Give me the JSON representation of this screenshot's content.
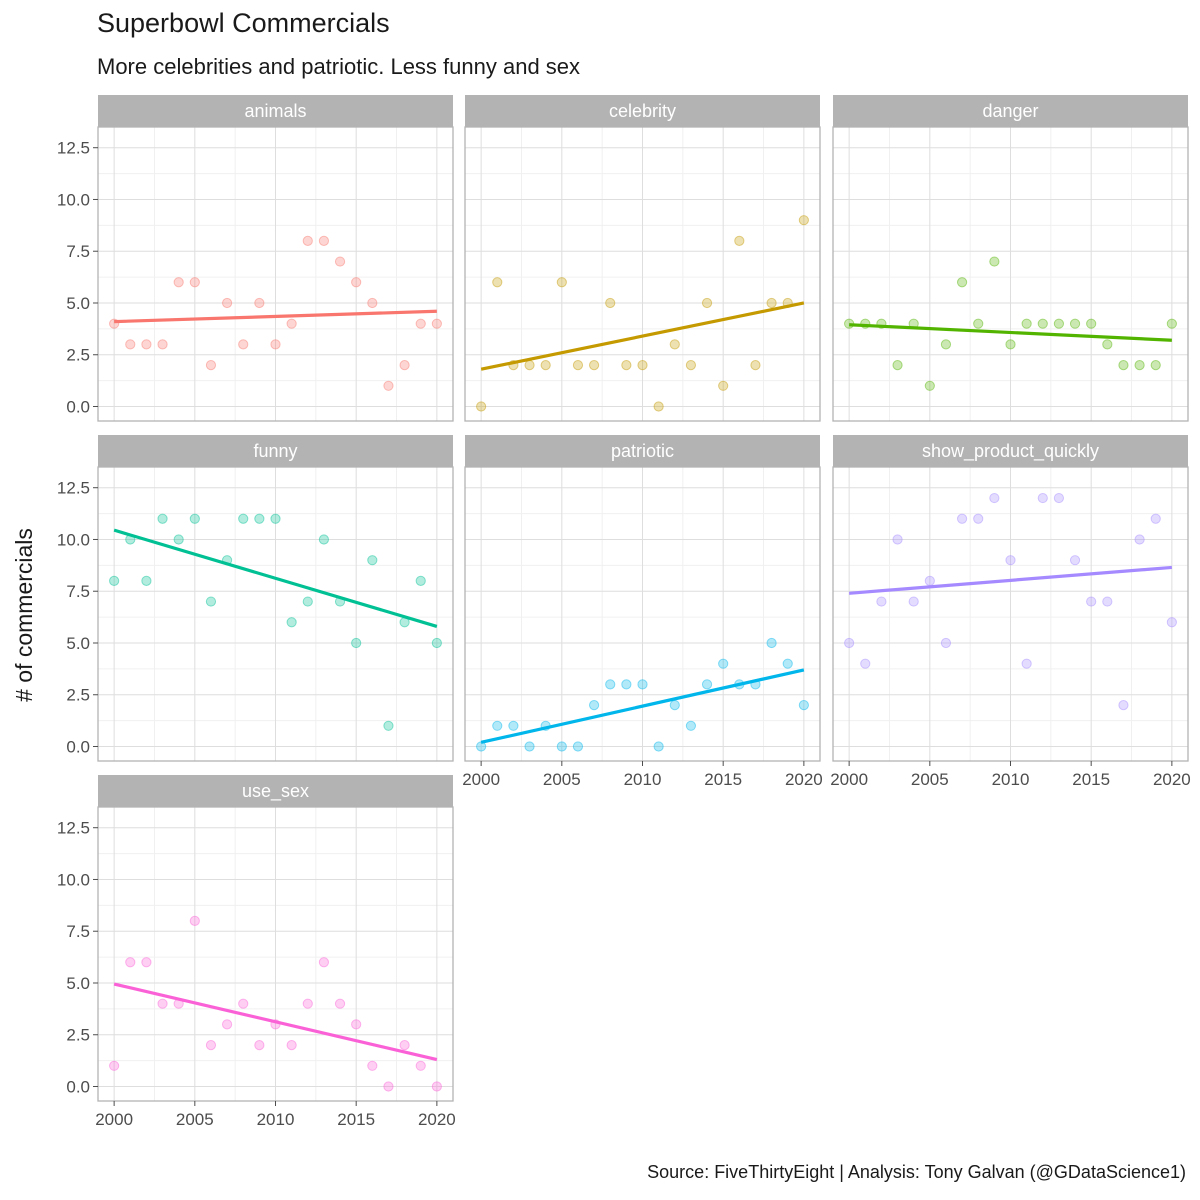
{
  "header": {
    "title": "Superbowl Commercials",
    "subtitle": "More celebrities and patriotic. Less funny and sex"
  },
  "caption": "Source: FiveThirtyEight  |  Analysis: Tony Galvan (@GDataScience1)",
  "chart_data": {
    "type": "scatter",
    "ylabel": "# of commercials",
    "xlim": [
      1999,
      2021
    ],
    "ylim": [
      -0.7,
      13.5
    ],
    "x_ticks": [
      2000,
      2005,
      2010,
      2015,
      2020
    ],
    "x_tick_labels": [
      "2000",
      "2005",
      "2010",
      "2015",
      "2020"
    ],
    "y_ticks": [
      0,
      2.5,
      5,
      7.5,
      10,
      12.5
    ],
    "y_tick_labels": [
      "0.0",
      "2.5",
      "5.0",
      "7.5",
      "10.0",
      "12.5"
    ],
    "x": [
      2000,
      2001,
      2002,
      2003,
      2004,
      2005,
      2006,
      2007,
      2008,
      2009,
      2010,
      2011,
      2012,
      2013,
      2014,
      2015,
      2016,
      2017,
      2018,
      2019,
      2020
    ],
    "series": [
      {
        "name": "animals",
        "color": "#F8766D",
        "values": [
          4,
          3,
          3,
          3,
          6,
          6,
          2,
          5,
          3,
          5,
          3,
          4,
          8,
          8,
          7,
          6,
          5,
          1,
          2,
          4,
          4
        ],
        "trend": [
          4.1,
          4.6
        ]
      },
      {
        "name": "celebrity",
        "color": "#C49A00",
        "values": [
          0,
          6,
          2,
          2,
          2,
          6,
          2,
          2,
          5,
          2,
          2,
          0,
          3,
          2,
          5,
          1,
          8,
          2,
          5,
          5,
          9
        ],
        "trend": [
          1.8,
          5.0
        ]
      },
      {
        "name": "danger",
        "color": "#53B400",
        "values": [
          4,
          4,
          4,
          2,
          4,
          1,
          3,
          6,
          4,
          7,
          3,
          4,
          4,
          4,
          4,
          4,
          3,
          2,
          2,
          2,
          4
        ],
        "trend": [
          3.95,
          3.2
        ]
      },
      {
        "name": "funny",
        "color": "#00C094",
        "values": [
          8,
          10,
          8,
          11,
          10,
          11,
          7,
          9,
          11,
          11,
          11,
          6,
          7,
          10,
          7,
          5,
          9,
          1,
          6,
          8,
          5
        ],
        "trend": [
          10.45,
          5.8
        ]
      },
      {
        "name": "patriotic",
        "color": "#00B6EB",
        "values": [
          0,
          1,
          1,
          0,
          1,
          0,
          0,
          2,
          3,
          3,
          3,
          0,
          2,
          1,
          3,
          4,
          3,
          3,
          5,
          4,
          2
        ],
        "trend": [
          0.2,
          3.7
        ]
      },
      {
        "name": "show_product_quickly",
        "color": "#A58AFF",
        "values": [
          5,
          4,
          7,
          10,
          7,
          8,
          5,
          11,
          11,
          12,
          9,
          4,
          12,
          12,
          9,
          7,
          7,
          2,
          10,
          11,
          6
        ],
        "trend": [
          7.4,
          8.65
        ]
      },
      {
        "name": "use_sex",
        "color": "#FB61D7",
        "values": [
          1,
          6,
          6,
          4,
          4,
          8,
          2,
          3,
          4,
          2,
          3,
          2,
          4,
          6,
          4,
          3,
          1,
          0,
          2,
          1,
          0
        ],
        "trend": [
          4.95,
          1.3
        ]
      }
    ]
  }
}
